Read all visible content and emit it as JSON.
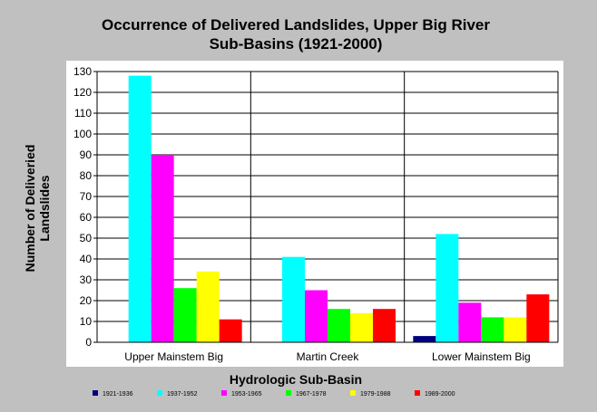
{
  "chart_data": {
    "type": "bar",
    "title_lines": [
      "Occurrence of Delivered Landslides, Upper Big River",
      "Sub-Basins (1921-2000)"
    ],
    "ylabel_lines": [
      "Number of Deliveried",
      "Landslides"
    ],
    "xlabel": "Hydrologic Sub-Basin",
    "ylim": [
      0,
      130
    ],
    "yticks": [
      0,
      10,
      20,
      30,
      40,
      50,
      60,
      70,
      80,
      90,
      100,
      110,
      120,
      130
    ],
    "grid": true,
    "legend_position": "bottom",
    "categories": [
      "Upper Mainstem Big",
      "Martin Creek",
      "Lower Mainstem Big"
    ],
    "series": [
      {
        "name": "1921-1936",
        "color": "#000080",
        "values": [
          0,
          0,
          3
        ]
      },
      {
        "name": "1937-1952",
        "color": "#00ffff",
        "values": [
          128,
          41,
          52
        ]
      },
      {
        "name": "1953-1965",
        "color": "#ff00ff",
        "values": [
          90,
          25,
          19
        ]
      },
      {
        "name": "1967-1978",
        "color": "#00ff00",
        "values": [
          26,
          16,
          12
        ]
      },
      {
        "name": "1979-1988",
        "color": "#ffff00",
        "values": [
          34,
          14,
          12
        ]
      },
      {
        "name": "1989-2000",
        "color": "#ff0000",
        "values": [
          11,
          16,
          23
        ]
      }
    ]
  }
}
